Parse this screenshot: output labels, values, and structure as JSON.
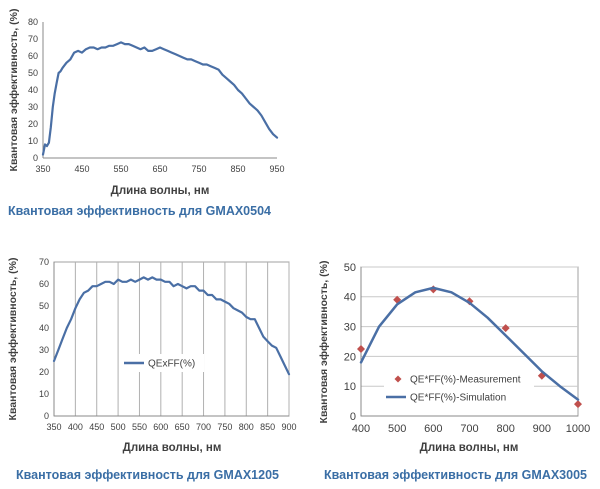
{
  "chart_data": [
    {
      "type": "line",
      "title": "",
      "xlabel": "Длина волны, нм",
      "ylabel": "Квантовая эффективность, (%)",
      "caption": "Квантовая эффективность для GMAX0504",
      "xlim": [
        350,
        950
      ],
      "ylim": [
        0,
        80
      ],
      "xticks": [
        "350",
        "450",
        "550",
        "650",
        "750",
        "850",
        "950"
      ],
      "yticks": [
        "0",
        "10",
        "20",
        "30",
        "40",
        "50",
        "60",
        "70",
        "80"
      ],
      "grid": "none",
      "legend": "none",
      "series": [
        {
          "color": "#4a6fa5",
          "x": [
            350,
            355,
            360,
            365,
            370,
            375,
            380,
            385,
            390,
            395,
            400,
            410,
            420,
            430,
            440,
            450,
            460,
            470,
            480,
            490,
            500,
            510,
            520,
            530,
            540,
            550,
            560,
            570,
            580,
            590,
            600,
            610,
            620,
            630,
            640,
            650,
            660,
            670,
            680,
            690,
            700,
            710,
            720,
            730,
            740,
            750,
            760,
            770,
            780,
            790,
            800,
            810,
            820,
            830,
            840,
            850,
            860,
            870,
            880,
            890,
            900,
            910,
            920,
            930,
            940,
            950
          ],
          "y": [
            2,
            8,
            7,
            9,
            18,
            30,
            38,
            44,
            50,
            51,
            53,
            56,
            58,
            62,
            63,
            62,
            64,
            65,
            65,
            64,
            65,
            65,
            66,
            66,
            67,
            68,
            67,
            67,
            66,
            65,
            64,
            65,
            63,
            63,
            64,
            65,
            64,
            63,
            62,
            61,
            60,
            59,
            58,
            58,
            57,
            56,
            55,
            55,
            54,
            53,
            52,
            49,
            47,
            45,
            43,
            40,
            38,
            35,
            32,
            30,
            28,
            25,
            21,
            17,
            14,
            12
          ]
        }
      ]
    },
    {
      "type": "line",
      "title": "",
      "xlabel": "Длина волны, нм",
      "ylabel": "Квантовая эффективность, (%)",
      "caption": "Квантовая эффективность для GMAX1205",
      "xlim": [
        350,
        900
      ],
      "ylim": [
        0,
        70
      ],
      "xticks": [
        "350",
        "400",
        "450",
        "500",
        "550",
        "600",
        "650",
        "700",
        "750",
        "800",
        "850",
        "900"
      ],
      "yticks": [
        "0",
        "10",
        "20",
        "30",
        "40",
        "50",
        "60",
        "70"
      ],
      "grid": "vertical",
      "legend": "center-left",
      "series": [
        {
          "name": "QExFF(%)",
          "color": "#4a6fa5",
          "x": [
            350,
            360,
            370,
            380,
            390,
            400,
            410,
            420,
            430,
            440,
            450,
            460,
            470,
            480,
            490,
            500,
            510,
            520,
            530,
            540,
            550,
            560,
            570,
            580,
            590,
            600,
            610,
            620,
            630,
            640,
            650,
            660,
            670,
            680,
            690,
            700,
            710,
            720,
            730,
            740,
            750,
            760,
            770,
            780,
            790,
            800,
            810,
            820,
            830,
            840,
            850,
            860,
            870,
            880,
            890,
            900
          ],
          "y": [
            25,
            30,
            35,
            40,
            44,
            49,
            53,
            56,
            57,
            59,
            59,
            60,
            61,
            61,
            60,
            62,
            61,
            61,
            62,
            61,
            62,
            63,
            62,
            63,
            62,
            62,
            61,
            61,
            59,
            60,
            59,
            58,
            59,
            59,
            57,
            57,
            55,
            55,
            53,
            53,
            52,
            51,
            49,
            48,
            47,
            45,
            44,
            44,
            40,
            36,
            34,
            32,
            31,
            27,
            23,
            19
          ]
        }
      ]
    },
    {
      "type": "scatter",
      "title": "",
      "xlabel": "Длина волны, нм",
      "ylabel": "Квантовая эффективность, (%)",
      "caption": "Квантовая эффективность для GMAX3005",
      "xlim": [
        400,
        1000
      ],
      "ylim": [
        0,
        50
      ],
      "xticks": [
        "400",
        "500",
        "600",
        "700",
        "800",
        "900",
        "1000"
      ],
      "yticks": [
        "0",
        "10",
        "20",
        "30",
        "40",
        "50"
      ],
      "grid": "horizontal",
      "legend": "center-right",
      "series": [
        {
          "name": "QE*FF(%)-Measurement",
          "color": "#c0504d",
          "marker": "diamond",
          "x": [
            400,
            500,
            600,
            700,
            800,
            900,
            1000
          ],
          "y": [
            22.5,
            39,
            42.5,
            38.5,
            29.5,
            13.5,
            4
          ]
        },
        {
          "name": "QE*FF(%)-Simulation",
          "color": "#4a6fa5",
          "marker": "line",
          "x": [
            400,
            450,
            500,
            550,
            600,
            650,
            700,
            750,
            800,
            850,
            900,
            950,
            1000
          ],
          "y": [
            18,
            30,
            37.5,
            41.5,
            43,
            41.5,
            38,
            33,
            27,
            21,
            15,
            10,
            5.5
          ]
        }
      ]
    }
  ]
}
